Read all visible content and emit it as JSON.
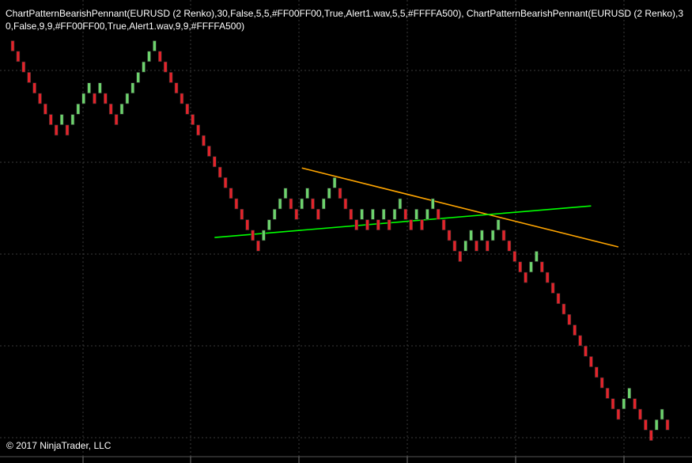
{
  "indicator_label": "ChartPatternBearishPennant(EURUSD (2 Renko),30,False,5,5,#FF00FF00,True,Alert1.wav,5,5,#FFFFA500), ChartPatternBearishPennant(EURUSD (2 Renko),30,False,9,9,#FF00FF00,True,Alert1.wav,9,9,#FFFFA500)",
  "copyright": "© 2017 NinjaTrader, LLC",
  "colors": {
    "background": "#000000",
    "grid": "#3a3a3a",
    "up_brick": "#6dd36d",
    "down_brick": "#e3242b",
    "brick_outline": "#2a2a2a",
    "resistance_line": "#ffa500",
    "support_line": "#00ff00",
    "text": "#ffffff"
  },
  "chart_data": {
    "type": "renko",
    "instrument": "EURUSD",
    "brick_size": 2,
    "units": "bricks relative to first brick",
    "bricks": [
      0,
      -1,
      -2,
      -3,
      -4,
      -5,
      -6,
      -7,
      -8,
      -7,
      -8,
      -7,
      -6,
      -5,
      -4,
      -5,
      -4,
      -5,
      -6,
      -7,
      -6,
      -5,
      -4,
      -3,
      -2,
      -1,
      0,
      -1,
      -2,
      -3,
      -4,
      -5,
      -6,
      -7,
      -8,
      -9,
      -10,
      -11,
      -12,
      -13,
      -14,
      -15,
      -16,
      -17,
      -18,
      -19,
      -18,
      -17,
      -16,
      -15,
      -14,
      -15,
      -16,
      -15,
      -14,
      -15,
      -16,
      -15,
      -14,
      -13,
      -14,
      -15,
      -16,
      -17,
      -16,
      -17,
      -16,
      -17,
      -16,
      -17,
      -16,
      -15,
      -16,
      -17,
      -16,
      -17,
      -16,
      -15,
      -16,
      -17,
      -18,
      -19,
      -20,
      -19,
      -18,
      -19,
      -18,
      -19,
      -18,
      -17,
      -18,
      -19,
      -20,
      -21,
      -22,
      -21,
      -20,
      -21,
      -22,
      -23,
      -24,
      -25,
      -26,
      -27,
      -28,
      -29,
      -30,
      -31,
      -32,
      -33,
      -34,
      -35,
      -34,
      -33,
      -34,
      -35,
      -36,
      -37,
      -36,
      -35,
      -36
    ]
  },
  "pattern_lines": [
    {
      "name": "resistance",
      "start_brick": 53,
      "start_value": -11.6,
      "end_brick": 111,
      "end_value": -19.1
    },
    {
      "name": "support",
      "start_brick": 37,
      "start_value": -18.2,
      "end_brick": 106,
      "end_value": -15.2
    }
  ]
}
